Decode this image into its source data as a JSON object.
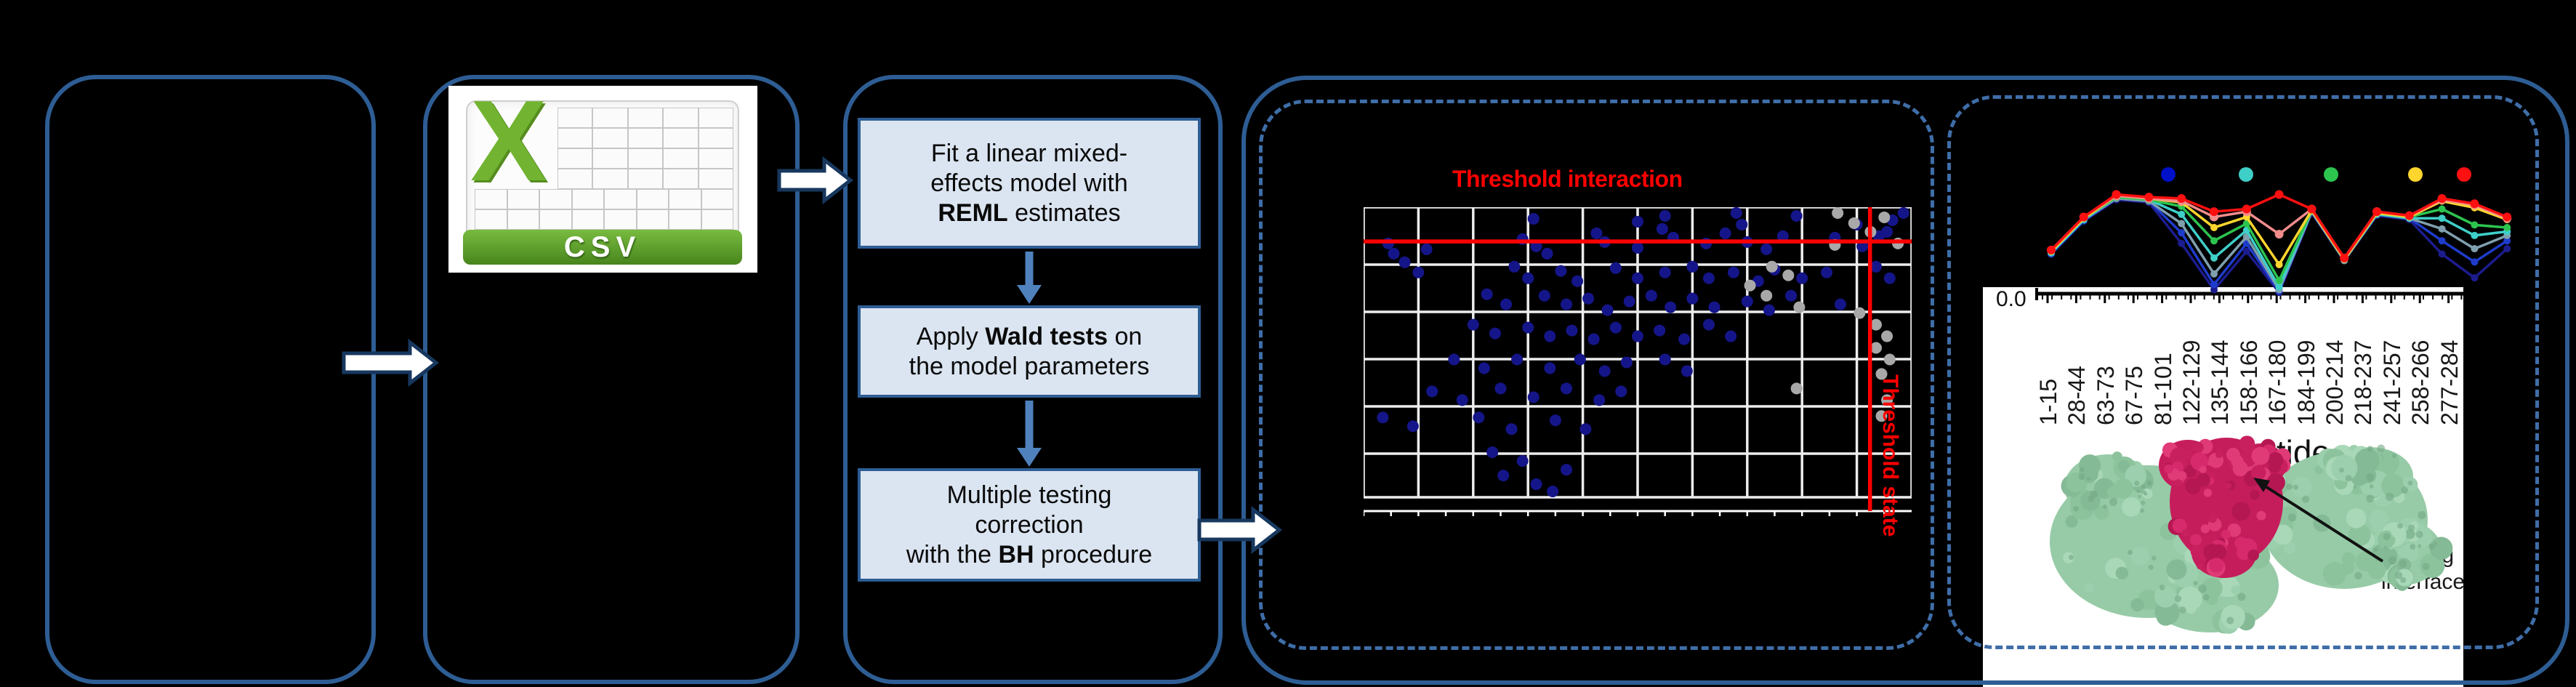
{
  "colors": {
    "background": "#000000",
    "container_border": "#2e5d94",
    "dashed_border": "#3f6ea8",
    "step_fill": "#dbe5f1",
    "flow_arrow_blue": "#4f81bd",
    "block_arrow_fill": "#ffffff",
    "block_arrow_stroke": "#17375e",
    "threshold_red": "#ff0000",
    "csv_green": "#72b431",
    "csv_banner_green": "#47851c"
  },
  "pipeline": {
    "csv_icon": {
      "label": "CSV"
    },
    "flowchart": {
      "steps": [
        {
          "lines": [
            "Fit a linear mixed-",
            "effects model with",
            "**REML** estimates"
          ]
        },
        {
          "lines": [
            "Apply **Wald tests** on",
            "the model parameters"
          ]
        },
        {
          "lines": [
            "Multiple testing",
            "correction",
            "with the **BH** procedure"
          ]
        }
      ]
    }
  },
  "panel_a": {
    "threshold_interaction_label": "Threshold interaction",
    "threshold_state_label": "Threshold state"
  },
  "panel_b": {
    "y_axis_tick": "0.0",
    "x_axis_title": "Peptide",
    "binding_label_line1": "Binding",
    "binding_label_line2": "interface",
    "legend_dot_colors": [
      "#0010c8",
      "#3ecfc8",
      "#2cc44f",
      "#ffd52e",
      "#ff1010"
    ]
  },
  "chart_data": [
    {
      "type": "scatter",
      "title": "Threshold interaction",
      "xlabel": "",
      "ylabel": "",
      "grid": {
        "columns": 10,
        "rows": 6,
        "grid_color": "#ededed",
        "background": "#000000"
      },
      "coords_note": "points are fractions of plot area, x 0=left..1=right, y 0=top..1=bottom",
      "threshold_interaction_y_frac": 0.118,
      "threshold_state_x_frac": 0.924,
      "series": [
        {
          "name": "interaction-significant",
          "color": "#15158a",
          "points": [
            [
              0.31,
              0.04
            ],
            [
              0.5,
              0.05
            ],
            [
              0.55,
              0.03
            ],
            [
              0.68,
              0.02
            ],
            [
              0.69,
              0.06
            ],
            [
              0.79,
              0.03
            ],
            [
              0.9,
              0.06
            ],
            [
              0.965,
              0.045
            ],
            [
              0.985,
              0.02
            ],
            [
              0.94,
              0.1
            ],
            [
              0.045,
              0.125
            ],
            [
              0.055,
              0.16
            ],
            [
              0.075,
              0.19
            ],
            [
              0.115,
              0.145
            ],
            [
              0.29,
              0.11
            ],
            [
              0.315,
              0.135
            ],
            [
              0.335,
              0.16
            ],
            [
              0.425,
              0.09
            ],
            [
              0.44,
              0.12
            ],
            [
              0.5,
              0.14
            ],
            [
              0.545,
              0.075
            ],
            [
              0.565,
              0.105
            ],
            [
              0.625,
              0.125
            ],
            [
              0.66,
              0.09
            ],
            [
              0.7,
              0.12
            ],
            [
              0.735,
              0.145
            ],
            [
              0.765,
              0.1
            ],
            [
              0.86,
              0.105
            ],
            [
              0.91,
              0.135
            ],
            [
              0.955,
              0.085
            ],
            [
              0.1,
              0.225
            ],
            [
              0.275,
              0.205
            ],
            [
              0.3,
              0.245
            ],
            [
              0.36,
              0.22
            ],
            [
              0.39,
              0.255
            ],
            [
              0.46,
              0.21
            ],
            [
              0.5,
              0.245
            ],
            [
              0.55,
              0.225
            ],
            [
              0.6,
              0.205
            ],
            [
              0.63,
              0.245
            ],
            [
              0.675,
              0.225
            ],
            [
              0.72,
              0.255
            ],
            [
              0.75,
              0.215
            ],
            [
              0.8,
              0.245
            ],
            [
              0.845,
              0.225
            ],
            [
              0.935,
              0.205
            ],
            [
              0.96,
              0.245
            ],
            [
              0.225,
              0.3
            ],
            [
              0.26,
              0.335
            ],
            [
              0.33,
              0.305
            ],
            [
              0.37,
              0.335
            ],
            [
              0.41,
              0.315
            ],
            [
              0.445,
              0.355
            ],
            [
              0.485,
              0.325
            ],
            [
              0.525,
              0.305
            ],
            [
              0.56,
              0.345
            ],
            [
              0.6,
              0.315
            ],
            [
              0.64,
              0.345
            ],
            [
              0.7,
              0.325
            ],
            [
              0.74,
              0.355
            ],
            [
              0.78,
              0.305
            ],
            [
              0.87,
              0.335
            ],
            [
              0.2,
              0.405
            ],
            [
              0.24,
              0.435
            ],
            [
              0.3,
              0.415
            ],
            [
              0.34,
              0.445
            ],
            [
              0.38,
              0.425
            ],
            [
              0.42,
              0.455
            ],
            [
              0.46,
              0.415
            ],
            [
              0.5,
              0.445
            ],
            [
              0.54,
              0.425
            ],
            [
              0.585,
              0.455
            ],
            [
              0.63,
              0.405
            ],
            [
              0.67,
              0.445
            ],
            [
              0.165,
              0.525
            ],
            [
              0.22,
              0.555
            ],
            [
              0.28,
              0.525
            ],
            [
              0.34,
              0.555
            ],
            [
              0.395,
              0.525
            ],
            [
              0.44,
              0.565
            ],
            [
              0.48,
              0.535
            ],
            [
              0.55,
              0.525
            ],
            [
              0.59,
              0.565
            ],
            [
              0.125,
              0.635
            ],
            [
              0.18,
              0.665
            ],
            [
              0.25,
              0.625
            ],
            [
              0.31,
              0.655
            ],
            [
              0.37,
              0.625
            ],
            [
              0.43,
              0.665
            ],
            [
              0.47,
              0.635
            ],
            [
              0.035,
              0.725
            ],
            [
              0.09,
              0.755
            ],
            [
              0.21,
              0.725
            ],
            [
              0.27,
              0.765
            ],
            [
              0.35,
              0.735
            ],
            [
              0.405,
              0.765
            ],
            [
              0.235,
              0.845
            ],
            [
              0.29,
              0.875
            ],
            [
              0.255,
              0.925
            ],
            [
              0.315,
              0.955
            ],
            [
              0.37,
              0.905
            ],
            [
              0.345,
              0.98
            ]
          ]
        },
        {
          "name": "state-cluster",
          "color": "#a8a8a8",
          "points": [
            [
              0.865,
              0.02
            ],
            [
              0.895,
              0.055
            ],
            [
              0.95,
              0.035
            ],
            [
              0.925,
              0.085
            ],
            [
              0.86,
              0.13
            ],
            [
              0.975,
              0.125
            ],
            [
              0.745,
              0.205
            ],
            [
              0.775,
              0.235
            ],
            [
              0.705,
              0.27
            ],
            [
              0.735,
              0.305
            ],
            [
              0.795,
              0.345
            ],
            [
              0.905,
              0.365
            ],
            [
              0.935,
              0.405
            ],
            [
              0.955,
              0.445
            ],
            [
              0.935,
              0.485
            ],
            [
              0.96,
              0.525
            ],
            [
              0.945,
              0.575
            ],
            [
              0.79,
              0.625
            ],
            [
              0.955,
              0.665
            ],
            [
              0.945,
              0.72
            ]
          ]
        }
      ]
    },
    {
      "type": "line",
      "title": "",
      "xlabel": "Peptide",
      "ylabel": "",
      "y_tick_labels": [
        "0.0"
      ],
      "ylim": [
        0,
        1
      ],
      "legend_position": "top",
      "categories": [
        "1-15",
        "28-44",
        "63-73",
        "67-75",
        "81-101",
        "122-129",
        "135-144",
        "158-166",
        "167-180",
        "184-199",
        "200-214",
        "218-237",
        "241-257",
        "258-266",
        "277-284"
      ],
      "series": [
        {
          "name": "navy",
          "color": "#1c1c8f",
          "values": [
            0.3,
            0.55,
            0.71,
            0.69,
            0.38,
            0.03,
            0.32,
            0.01,
            0.61,
            0.25,
            0.59,
            0.56,
            0.3,
            0.12,
            0.34
          ]
        },
        {
          "name": "blue",
          "color": "#1e3ccc",
          "values": [
            0.3,
            0.55,
            0.72,
            0.7,
            0.46,
            0.07,
            0.38,
            0.02,
            0.62,
            0.25,
            0.6,
            0.57,
            0.4,
            0.24,
            0.4
          ]
        },
        {
          "name": "steel",
          "color": "#7f9fae",
          "values": [
            0.31,
            0.56,
            0.72,
            0.7,
            0.53,
            0.15,
            0.43,
            0.03,
            0.62,
            0.25,
            0.6,
            0.57,
            0.49,
            0.34,
            0.44
          ]
        },
        {
          "name": "cyan",
          "color": "#3ecfc8",
          "values": [
            0.31,
            0.56,
            0.73,
            0.71,
            0.6,
            0.27,
            0.48,
            0.05,
            0.63,
            0.26,
            0.6,
            0.57,
            0.57,
            0.44,
            0.47
          ]
        },
        {
          "name": "green",
          "color": "#2cc44f",
          "values": [
            0.32,
            0.57,
            0.73,
            0.71,
            0.66,
            0.4,
            0.53,
            0.1,
            0.63,
            0.26,
            0.61,
            0.58,
            0.64,
            0.52,
            0.5
          ]
        },
        {
          "name": "yellow",
          "color": "#ffd52e",
          "values": [
            0.32,
            0.57,
            0.74,
            0.72,
            0.69,
            0.5,
            0.58,
            0.22,
            0.63,
            0.26,
            0.61,
            0.58,
            0.7,
            0.65,
            0.56
          ]
        },
        {
          "name": "salmon",
          "color": "#f28c8c",
          "values": [
            0.33,
            0.58,
            0.74,
            0.72,
            0.7,
            0.58,
            0.62,
            0.45,
            0.64,
            0.27,
            0.62,
            0.59,
            0.71,
            0.67,
            0.57
          ]
        },
        {
          "name": "red",
          "color": "#ff1010",
          "values": [
            0.33,
            0.58,
            0.75,
            0.73,
            0.72,
            0.62,
            0.64,
            0.75,
            0.64,
            0.27,
            0.62,
            0.59,
            0.72,
            0.68,
            0.58
          ]
        }
      ]
    }
  ]
}
